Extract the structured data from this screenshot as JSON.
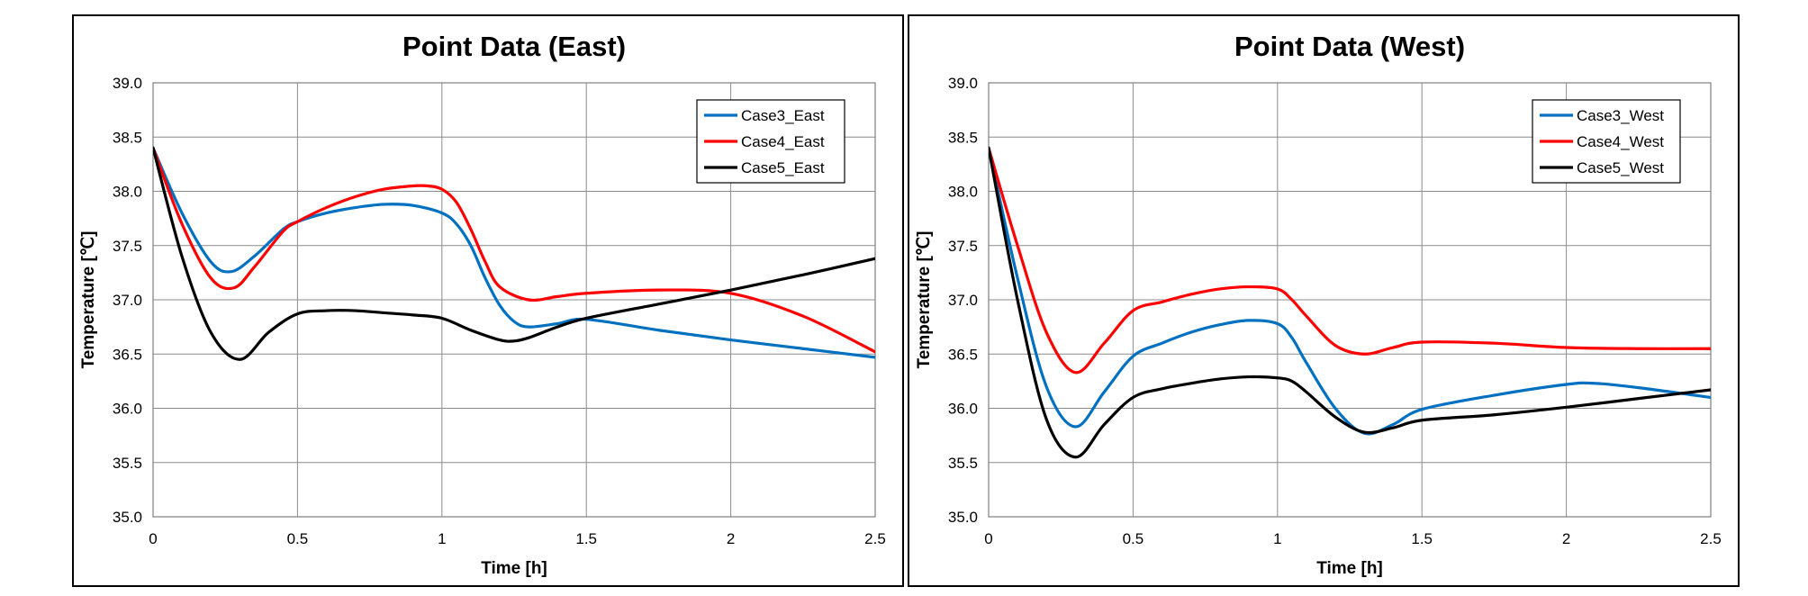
{
  "chart_data": [
    {
      "type": "line",
      "title": "Point Data (East)",
      "xlabel": "Time [h]",
      "ylabel": "Temperature [℃]",
      "xlim": [
        0,
        2.5
      ],
      "ylim": [
        35.0,
        39.0
      ],
      "xticks": [
        "0",
        "0.5",
        "1",
        "1.5",
        "2",
        "2.5"
      ],
      "yticks": [
        "35.0",
        "35.5",
        "36.0",
        "36.5",
        "37.0",
        "37.5",
        "38.0",
        "38.5",
        "39.0"
      ],
      "legend_position": "top-right",
      "grid": true,
      "series": [
        {
          "name": "Case3_East",
          "color": "#0070C0",
          "x": [
            0,
            0.1,
            0.2,
            0.27,
            0.35,
            0.45,
            0.5,
            0.6,
            0.7,
            0.8,
            0.9,
            1.0,
            1.05,
            1.1,
            1.15,
            1.2,
            1.25,
            1.3,
            1.4,
            1.5,
            1.75,
            2.0,
            2.25,
            2.5
          ],
          "y": [
            38.4,
            37.8,
            37.35,
            37.26,
            37.4,
            37.65,
            37.72,
            37.8,
            37.85,
            37.88,
            37.87,
            37.8,
            37.7,
            37.5,
            37.2,
            36.95,
            36.8,
            36.75,
            36.78,
            36.82,
            36.72,
            36.63,
            36.55,
            36.47
          ]
        },
        {
          "name": "Case4_East",
          "color": "#FF0000",
          "x": [
            0,
            0.1,
            0.2,
            0.28,
            0.35,
            0.45,
            0.5,
            0.6,
            0.7,
            0.8,
            0.9,
            0.95,
            1.0,
            1.05,
            1.1,
            1.15,
            1.2,
            1.3,
            1.4,
            1.5,
            1.75,
            2.0,
            2.25,
            2.5
          ],
          "y": [
            38.4,
            37.7,
            37.2,
            37.11,
            37.3,
            37.63,
            37.72,
            37.85,
            37.95,
            38.02,
            38.05,
            38.05,
            38.02,
            37.9,
            37.65,
            37.35,
            37.12,
            37.0,
            37.03,
            37.06,
            37.09,
            37.06,
            36.85,
            36.52
          ]
        },
        {
          "name": "Case5_East",
          "color": "#000000",
          "x": [
            0,
            0.1,
            0.2,
            0.3,
            0.4,
            0.5,
            0.6,
            0.7,
            0.8,
            0.9,
            1.0,
            1.1,
            1.2,
            1.25,
            1.3,
            1.4,
            1.5,
            1.75,
            2.0,
            2.25,
            2.5
          ],
          "y": [
            38.4,
            37.4,
            36.7,
            36.45,
            36.7,
            36.87,
            36.9,
            36.9,
            36.88,
            36.86,
            36.83,
            36.72,
            36.63,
            36.62,
            36.65,
            36.75,
            36.83,
            36.96,
            37.09,
            37.23,
            37.38
          ]
        }
      ]
    },
    {
      "type": "line",
      "title": "Point Data (West)",
      "xlabel": "Time [h]",
      "ylabel": "Temperature [℃]",
      "xlim": [
        0,
        2.5
      ],
      "ylim": [
        35.0,
        39.0
      ],
      "xticks": [
        "0",
        "0.5",
        "1",
        "1.5",
        "2",
        "2.5"
      ],
      "yticks": [
        "35.0",
        "35.5",
        "36.0",
        "36.5",
        "37.0",
        "37.5",
        "38.0",
        "38.5",
        "39.0"
      ],
      "legend_position": "top-right",
      "grid": true,
      "series": [
        {
          "name": "Case3_West",
          "color": "#0070C0",
          "x": [
            0,
            0.1,
            0.2,
            0.3,
            0.4,
            0.5,
            0.6,
            0.7,
            0.8,
            0.9,
            1.0,
            1.05,
            1.1,
            1.2,
            1.3,
            1.4,
            1.5,
            1.75,
            2.0,
            2.1,
            2.25,
            2.5
          ],
          "y": [
            38.4,
            37.2,
            36.2,
            35.83,
            36.15,
            36.48,
            36.6,
            36.7,
            36.77,
            36.81,
            36.78,
            36.65,
            36.42,
            36.0,
            35.77,
            35.85,
            35.99,
            36.12,
            36.22,
            36.23,
            36.19,
            36.1
          ]
        },
        {
          "name": "Case4_West",
          "color": "#FF0000",
          "x": [
            0,
            0.1,
            0.2,
            0.3,
            0.4,
            0.5,
            0.6,
            0.7,
            0.8,
            0.9,
            1.0,
            1.05,
            1.1,
            1.2,
            1.3,
            1.4,
            1.5,
            1.75,
            2.0,
            2.25,
            2.5
          ],
          "y": [
            38.4,
            37.5,
            36.7,
            36.33,
            36.6,
            36.9,
            36.98,
            37.05,
            37.1,
            37.12,
            37.1,
            37.0,
            36.85,
            36.58,
            36.5,
            36.56,
            36.61,
            36.6,
            36.56,
            36.55,
            36.55
          ]
        },
        {
          "name": "Case5_West",
          "color": "#000000",
          "x": [
            0,
            0.1,
            0.2,
            0.3,
            0.4,
            0.5,
            0.6,
            0.7,
            0.8,
            0.9,
            1.0,
            1.05,
            1.1,
            1.2,
            1.3,
            1.4,
            1.5,
            1.75,
            2.0,
            2.25,
            2.5
          ],
          "y": [
            38.4,
            37.0,
            35.9,
            35.55,
            35.85,
            36.1,
            36.18,
            36.23,
            36.27,
            36.29,
            36.28,
            36.25,
            36.15,
            35.92,
            35.78,
            35.82,
            35.89,
            35.94,
            36.01,
            36.09,
            36.17
          ]
        }
      ]
    }
  ]
}
